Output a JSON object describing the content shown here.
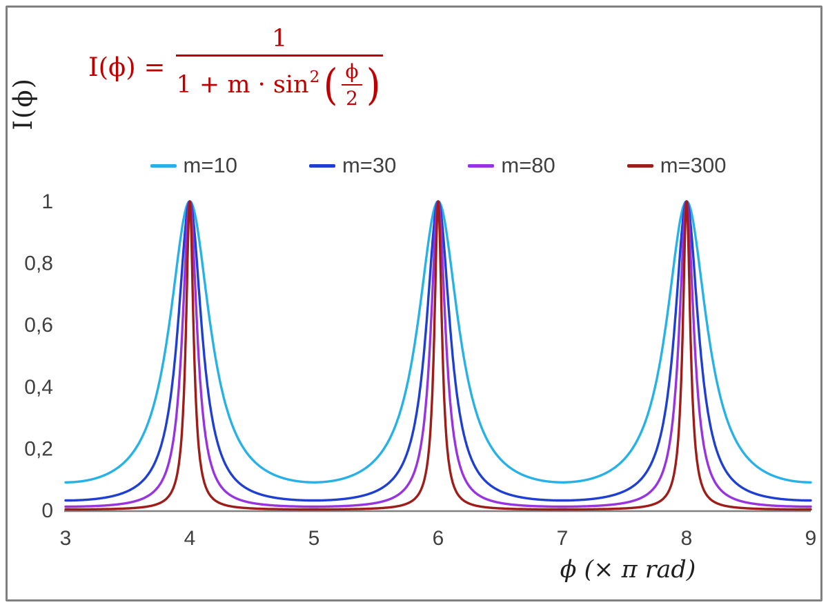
{
  "frame": {
    "border_color": "#7f7f7f",
    "background": "#ffffff"
  },
  "formula": {
    "color": "#c00000",
    "lhs": "I(ϕ) =",
    "numerator": "1",
    "denom_prefix": "1 + m · sin",
    "denom_sup": "2",
    "inner_numerator": "ϕ",
    "inner_denominator": "2"
  },
  "legend": {
    "items": [
      {
        "label": "m=10",
        "color": "#27b1e6"
      },
      {
        "label": "m=30",
        "color": "#1e3fd2"
      },
      {
        "label": "m=80",
        "color": "#9833e0"
      },
      {
        "label": "m=300",
        "color": "#9e1d18"
      }
    ]
  },
  "chart_data": {
    "type": "line",
    "title": "",
    "function": "I(phi) = 1 / (1 + m * sin^2(phi/2))",
    "x_variable": "phi",
    "x_unit": "pi rad",
    "x_range": [
      3,
      9
    ],
    "y_range": [
      0,
      1
    ],
    "x_ticks": [
      3,
      4,
      5,
      6,
      7,
      8,
      9
    ],
    "y_ticks": [
      0,
      0.2,
      0.4,
      0.6,
      0.8,
      1
    ],
    "y_tick_labels": [
      "0",
      "0,2",
      "0,4",
      "0,6",
      "0,8",
      "1"
    ],
    "xlabel": "ϕ  (× π rad)",
    "ylabel": "I(ϕ)",
    "grid": false,
    "legend_position": "top",
    "peaks_at_x": [
      4,
      6,
      8
    ],
    "peak_value": 1,
    "series": [
      {
        "name": "m=10",
        "m": 10,
        "color": "#27b1e6",
        "value_between_peaks": 0.091
      },
      {
        "name": "m=30",
        "m": 30,
        "color": "#1e3fd2",
        "value_between_peaks": 0.032
      },
      {
        "name": "m=80",
        "m": 80,
        "color": "#9833e0",
        "value_between_peaks": 0.012
      },
      {
        "name": "m=300",
        "m": 300,
        "color": "#9e1d18",
        "value_between_peaks": 0.003
      }
    ]
  }
}
